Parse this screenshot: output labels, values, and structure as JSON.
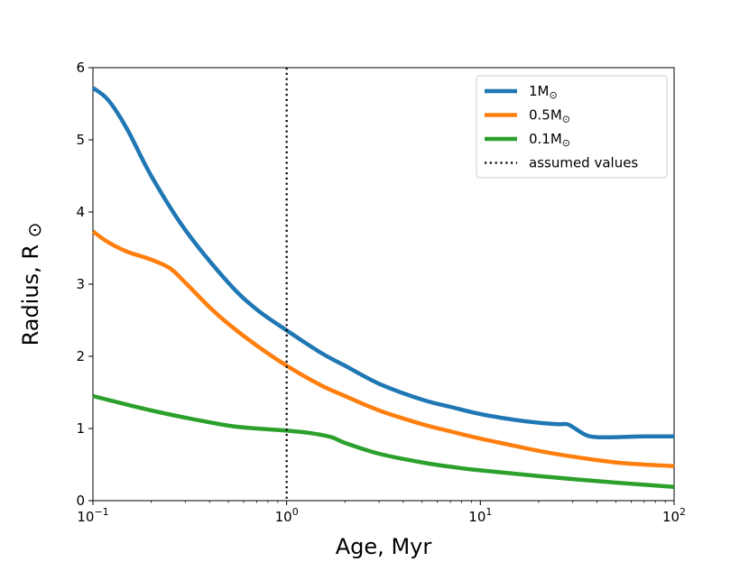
{
  "chart_data": {
    "type": "line",
    "title": "",
    "xlabel": "Age, Myr",
    "ylabel_text": "Radius, R",
    "ylabel_symbol": "⊙",
    "xscale": "log",
    "xlim": [
      0.1,
      100
    ],
    "ylim": [
      0,
      6
    ],
    "grid": false,
    "legend_position": "top-right",
    "x_ticks": [
      {
        "value": 0.1,
        "base": "10",
        "exp": "−1"
      },
      {
        "value": 1,
        "base": "10",
        "exp": "0"
      },
      {
        "value": 10,
        "base": "10",
        "exp": "1"
      },
      {
        "value": 100,
        "base": "10",
        "exp": "2"
      }
    ],
    "y_ticks": [
      {
        "value": 0,
        "label": "0"
      },
      {
        "value": 1,
        "label": "1"
      },
      {
        "value": 2,
        "label": "2"
      },
      {
        "value": 3,
        "label": "3"
      },
      {
        "value": 4,
        "label": "4"
      },
      {
        "value": 5,
        "label": "5"
      },
      {
        "value": 6,
        "label": "6"
      }
    ],
    "series": [
      {
        "name": "1M",
        "sub": "⊙",
        "color": "#1f77b4",
        "x": [
          0.1,
          0.12,
          0.15,
          0.2,
          0.3,
          0.5,
          0.7,
          1,
          1.5,
          2,
          3,
          5,
          7,
          10,
          15,
          20,
          25,
          28,
          30,
          35,
          40,
          50,
          70,
          100
        ],
        "y": [
          5.72,
          5.55,
          5.15,
          4.5,
          3.75,
          3.02,
          2.65,
          2.36,
          2.05,
          1.87,
          1.62,
          1.4,
          1.3,
          1.2,
          1.12,
          1.08,
          1.06,
          1.06,
          1.02,
          0.91,
          0.88,
          0.88,
          0.89,
          0.89
        ]
      },
      {
        "name": "0.5M",
        "sub": "⊙",
        "color": "#ff7f0e",
        "x": [
          0.1,
          0.12,
          0.15,
          0.2,
          0.25,
          0.3,
          0.4,
          0.5,
          0.7,
          1,
          1.5,
          2,
          3,
          5,
          7,
          10,
          15,
          20,
          30,
          50,
          70,
          100
        ],
        "y": [
          3.73,
          3.58,
          3.45,
          3.34,
          3.22,
          3.02,
          2.68,
          2.45,
          2.15,
          1.87,
          1.6,
          1.45,
          1.25,
          1.06,
          0.96,
          0.86,
          0.76,
          0.69,
          0.61,
          0.53,
          0.5,
          0.48
        ]
      },
      {
        "name": "0.1M",
        "sub": "⊙",
        "color": "#2ca02c",
        "x": [
          0.1,
          0.15,
          0.2,
          0.3,
          0.5,
          0.7,
          1,
          1.3,
          1.7,
          2,
          3,
          5,
          7,
          10,
          20,
          50,
          100
        ],
        "y": [
          1.45,
          1.33,
          1.25,
          1.15,
          1.04,
          1.0,
          0.97,
          0.94,
          0.88,
          0.8,
          0.65,
          0.53,
          0.47,
          0.42,
          0.34,
          0.25,
          0.19
        ]
      }
    ],
    "vline": {
      "x": 1,
      "label": "assumed values",
      "color": "#000000",
      "style": "dotted"
    }
  }
}
